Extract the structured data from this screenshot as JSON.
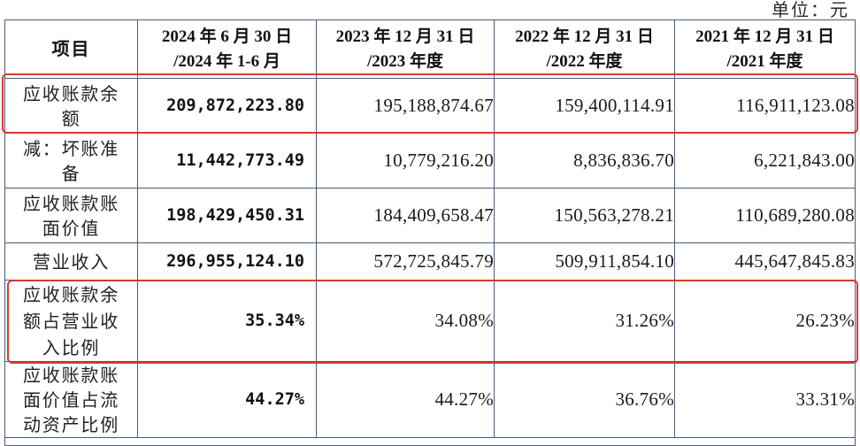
{
  "unit_label": "单位：元",
  "table": {
    "header": {
      "item": "项目",
      "periods": [
        {
          "line1": "2024 年 6 月 30 日",
          "line2": "/2024 年 1-6 月"
        },
        {
          "line1": "2023 年 12 月 31 日",
          "line2": "/2023 年度"
        },
        {
          "line1": "2022 年 12 月 31 日",
          "line2": "/2022 年度"
        },
        {
          "line1": "2021 年 12 月 31 日",
          "line2": "/2021 年度"
        }
      ]
    },
    "rows": [
      {
        "label": "应收账款余额",
        "values": [
          "209,872,223.80",
          "195,188,874.67",
          "159,400,114.91",
          "116,911,123.08"
        ],
        "highlighted": true
      },
      {
        "label": "减：坏账准备",
        "values": [
          "11,442,773.49",
          "10,779,216.20",
          "8,836,836.70",
          "6,221,843.00"
        ],
        "highlighted": false
      },
      {
        "label": "应收账款账面价值",
        "values": [
          "198,429,450.31",
          "184,409,658.47",
          "150,563,278.21",
          "110,689,280.08"
        ],
        "highlighted": false
      },
      {
        "label": "营业收入",
        "values": [
          "296,955,124.10",
          "572,725,845.79",
          "509,911,854.10",
          "445,647,845.83"
        ],
        "highlighted": false
      },
      {
        "label": "应收账款余额占营业收入比例",
        "values": [
          "35.34%",
          "34.08%",
          "31.26%",
          "26.23%"
        ],
        "highlighted": true
      },
      {
        "label": "应收账款账面价值占流动资产比例",
        "values": [
          "44.27%",
          "44.27%",
          "36.76%",
          "33.31%"
        ],
        "highlighted": false
      }
    ]
  },
  "colors": {
    "highlight": "#d63a2e",
    "grid": "#4b5a7a"
  }
}
